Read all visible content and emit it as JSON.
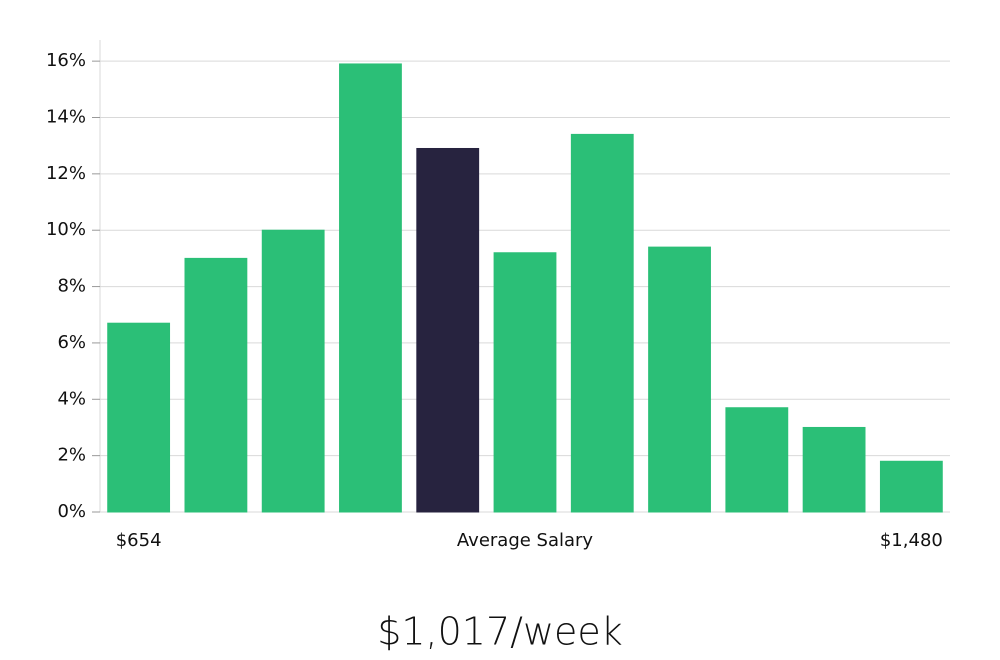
{
  "chart_data": {
    "type": "bar",
    "categories": [
      "$654",
      null,
      null,
      null,
      null,
      "Average Salary",
      null,
      null,
      null,
      null,
      "$1,480"
    ],
    "values": [
      6.7,
      9.0,
      10.0,
      15.9,
      12.9,
      9.2,
      13.4,
      9.4,
      3.7,
      3.0,
      1.8
    ],
    "colors": [
      "#2bbf77",
      "#2bbf77",
      "#2bbf77",
      "#2bbf77",
      "#27233f",
      "#2bbf77",
      "#2bbf77",
      "#2bbf77",
      "#2bbf77",
      "#2bbf77",
      "#2bbf77"
    ],
    "ylim": [
      0,
      16.75
    ],
    "yticks": [
      {
        "value": 0,
        "label": "0%"
      },
      {
        "value": 2,
        "label": "2%"
      },
      {
        "value": 4,
        "label": "4%"
      },
      {
        "value": 6,
        "label": "6%"
      },
      {
        "value": 8,
        "label": "8%"
      },
      {
        "value": 10,
        "label": "10%"
      },
      {
        "value": 12,
        "label": "12%"
      },
      {
        "value": 14,
        "label": "14%"
      },
      {
        "value": 16,
        "label": "16%"
      }
    ],
    "grid": true,
    "annotation": "$1,017/week"
  }
}
